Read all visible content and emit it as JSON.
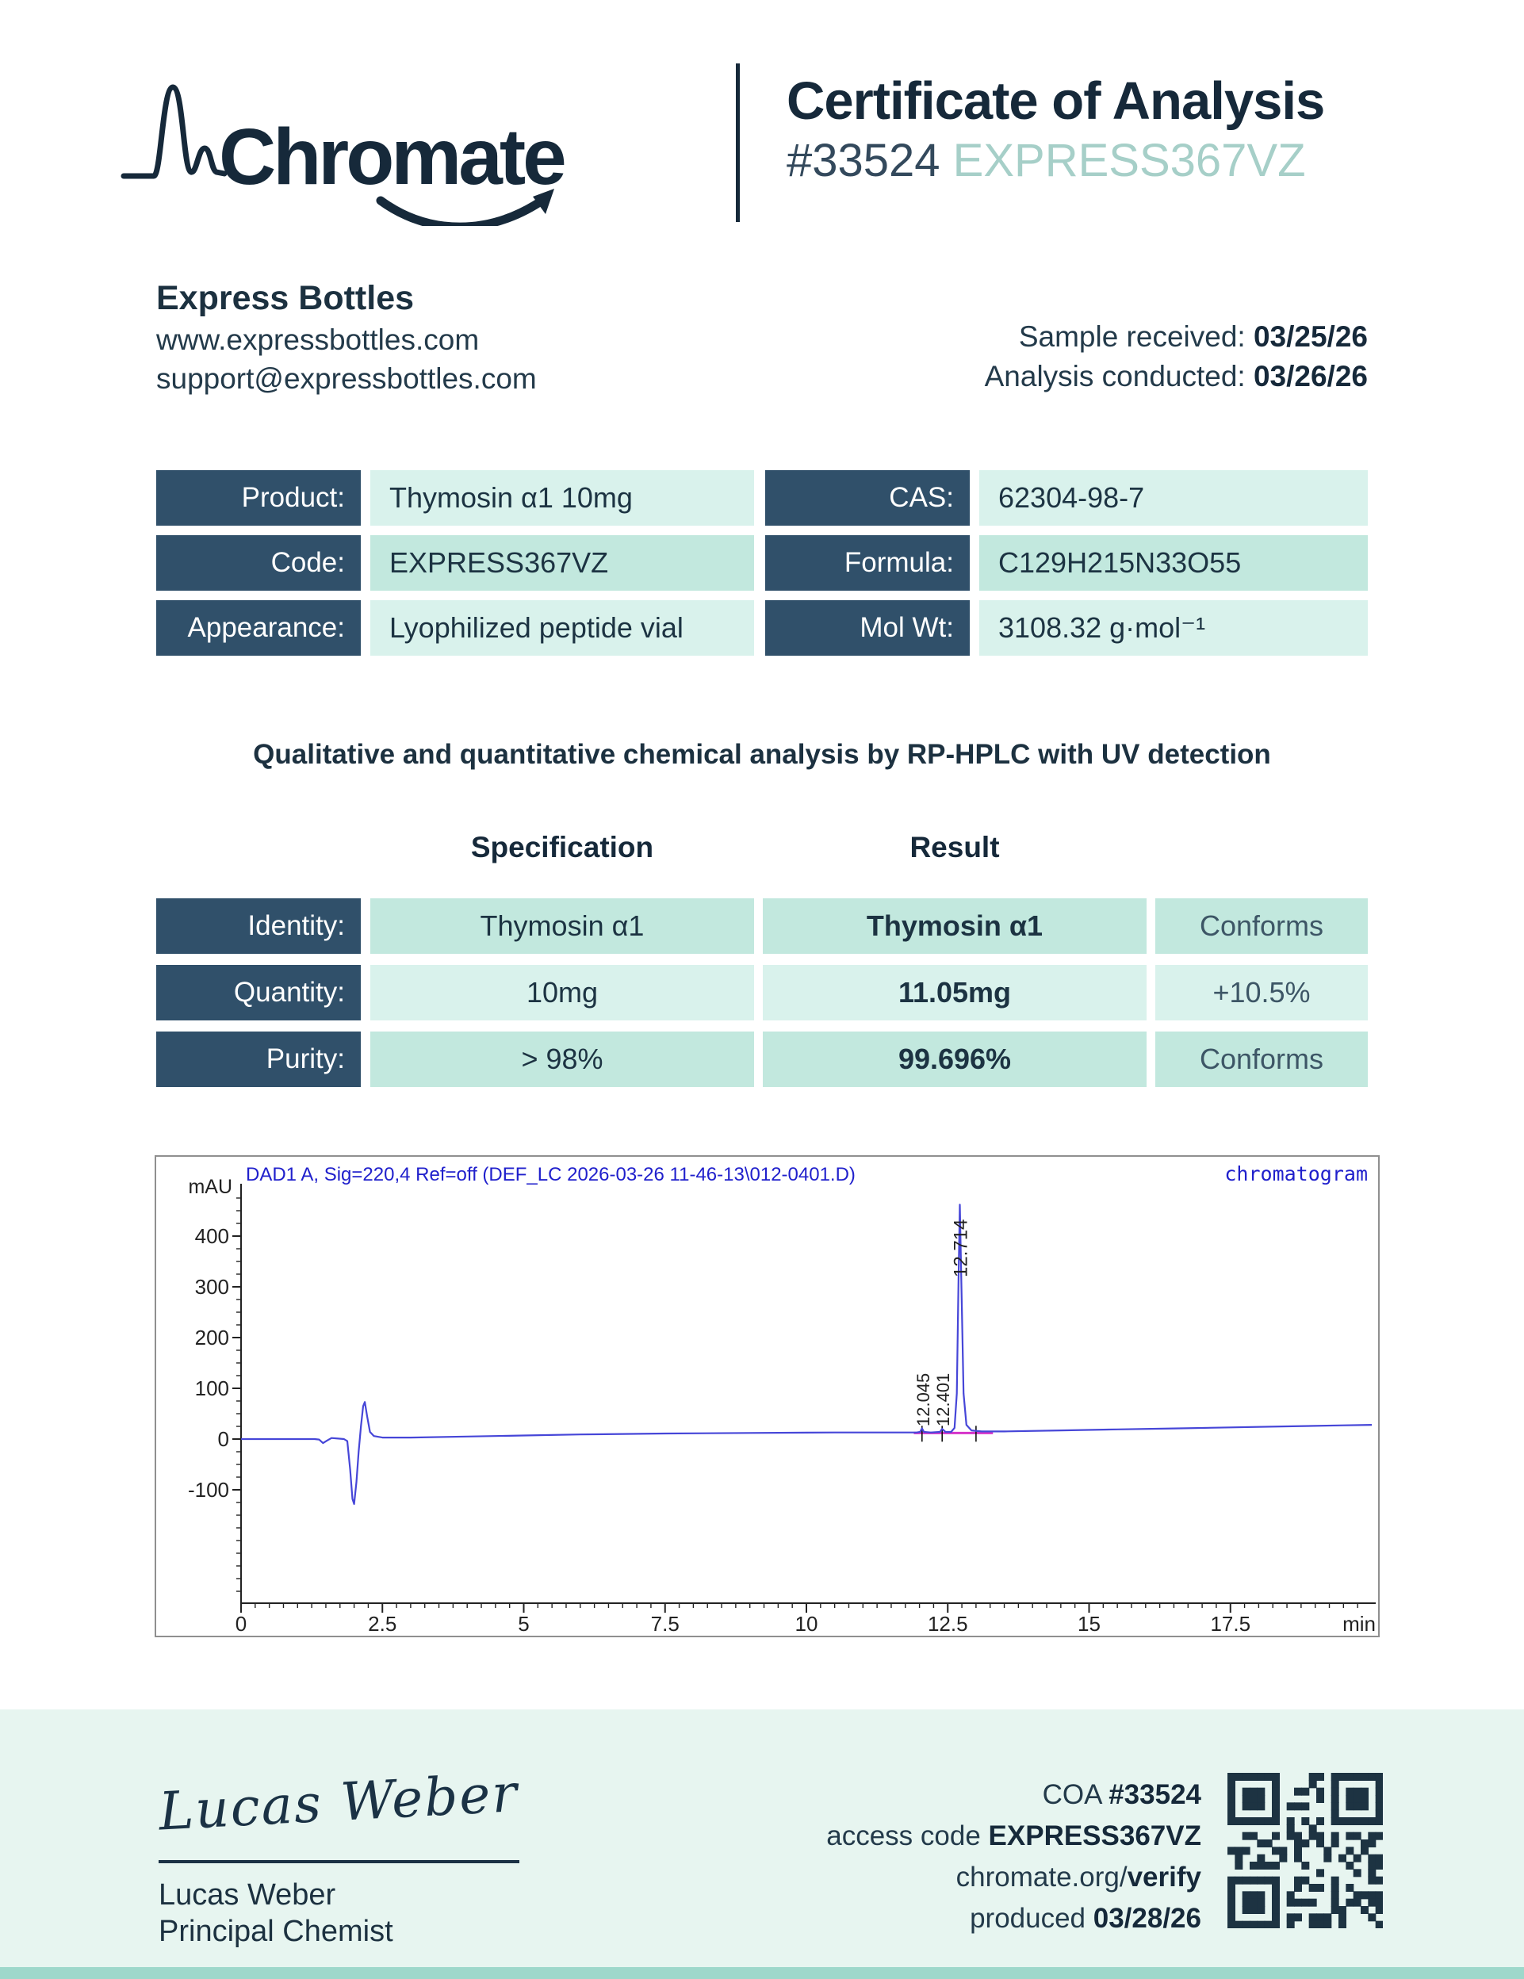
{
  "header": {
    "logo_text": "Chromate",
    "title": "Certificate of Analysis",
    "coa_number": "#33524",
    "coa_code": "EXPRESS367VZ"
  },
  "client": {
    "name": "Express Bottles",
    "website": "www.expressbottles.com",
    "email": "support@expressbottles.com",
    "received_label": "Sample received: ",
    "received_date": "03/25/26",
    "conducted_label": "Analysis conducted: ",
    "conducted_date": "03/26/26"
  },
  "product_info": {
    "left": [
      {
        "label": "Product:",
        "value": "Thymosin α1 10mg"
      },
      {
        "label": "Code:",
        "value": "EXPRESS367VZ"
      },
      {
        "label": "Appearance:",
        "value": "Lyophilized peptide vial"
      }
    ],
    "right": [
      {
        "label": "CAS:",
        "value": "62304-98-7"
      },
      {
        "label": "Formula:",
        "value": "C129H215N33O55"
      },
      {
        "label": "Mol Wt:",
        "value": "3108.32 g·mol⁻¹"
      }
    ]
  },
  "method_title": "Qualitative and quantitative chemical analysis by RP-HPLC with UV detection",
  "results": {
    "col_headers": [
      "Specification",
      "Result"
    ],
    "rows": [
      {
        "label": "Identity:",
        "spec": "Thymosin α1",
        "result": "Thymosin α1",
        "status": "Conforms"
      },
      {
        "label": "Quantity:",
        "spec": "10mg",
        "result": "11.05mg",
        "status": "+10.5%"
      },
      {
        "label": "Purity:",
        "spec": "> 98%",
        "result": "99.696%",
        "status": "Conforms"
      }
    ]
  },
  "chart_data": {
    "type": "line",
    "title": "DAD1 A, Sig=220,4 Ref=off (DEF_LC 2026-03-26 11-46-13\\012-0401.D)",
    "corner_label": "chromatogram",
    "ylabel": "mAU",
    "xlabel": "min",
    "xlim": [
      0,
      20.1
    ],
    "ylim": [
      -323,
      500
    ],
    "x_major_ticks": [
      0,
      2.5,
      5,
      7.5,
      10,
      12.5,
      15,
      17.5
    ],
    "x_minor_step": 0.25,
    "y_major_ticks": [
      400,
      300,
      200,
      100,
      0,
      -100
    ],
    "y_minor_step": 25,
    "trace_color": "#4646d8",
    "integration_color": "#d633c9",
    "peaks": [
      {
        "rt": "12.045",
        "x": 12.045,
        "main": false
      },
      {
        "rt": "12.401",
        "x": 12.401,
        "main": false
      },
      {
        "rt": "12.714",
        "x": 12.714,
        "main": true
      }
    ],
    "integration": {
      "x1": 11.9,
      "x2": 13.3,
      "y": 12,
      "ticks": [
        12.045,
        12.401,
        13.0
      ]
    },
    "trace": [
      [
        0,
        0
      ],
      [
        1.3,
        0
      ],
      [
        1.38,
        -1
      ],
      [
        1.45,
        -8
      ],
      [
        1.52,
        -3
      ],
      [
        1.6,
        2
      ],
      [
        1.72,
        1
      ],
      [
        1.82,
        0
      ],
      [
        1.88,
        -4
      ],
      [
        1.93,
        -60
      ],
      [
        1.97,
        -118
      ],
      [
        2.0,
        -128
      ],
      [
        2.04,
        -85
      ],
      [
        2.08,
        -25
      ],
      [
        2.12,
        25
      ],
      [
        2.16,
        65
      ],
      [
        2.19,
        73
      ],
      [
        2.23,
        45
      ],
      [
        2.28,
        14
      ],
      [
        2.35,
        6
      ],
      [
        2.5,
        3
      ],
      [
        3,
        3
      ],
      [
        4,
        5
      ],
      [
        5,
        7
      ],
      [
        6,
        9
      ],
      [
        7.5,
        11
      ],
      [
        9,
        12
      ],
      [
        10.5,
        13
      ],
      [
        11.6,
        13
      ],
      [
        11.95,
        13
      ],
      [
        12.01,
        14
      ],
      [
        12.045,
        21
      ],
      [
        12.08,
        14
      ],
      [
        12.2,
        13
      ],
      [
        12.36,
        14
      ],
      [
        12.401,
        20
      ],
      [
        12.46,
        14
      ],
      [
        12.56,
        14
      ],
      [
        12.62,
        22
      ],
      [
        12.66,
        90
      ],
      [
        12.69,
        310
      ],
      [
        12.714,
        462
      ],
      [
        12.74,
        310
      ],
      [
        12.78,
        90
      ],
      [
        12.83,
        28
      ],
      [
        12.92,
        17
      ],
      [
        13.1,
        15
      ],
      [
        13.5,
        15
      ],
      [
        14.5,
        17
      ],
      [
        15.5,
        19
      ],
      [
        16.5,
        21
      ],
      [
        17.5,
        23
      ],
      [
        18.5,
        25
      ],
      [
        19.5,
        27
      ],
      [
        20.0,
        28
      ]
    ]
  },
  "footer": {
    "signature_name": "Lucas Weber",
    "signer": "Lucas Weber",
    "role": "Principal Chemist",
    "lines": [
      {
        "pre": "COA ",
        "bold": "#33524"
      },
      {
        "pre": "access code ",
        "bold": "EXPRESS367VZ"
      },
      {
        "pre": "chromate.org/",
        "bold": "verify"
      },
      {
        "pre": "produced ",
        "bold": "03/28/26"
      }
    ]
  }
}
